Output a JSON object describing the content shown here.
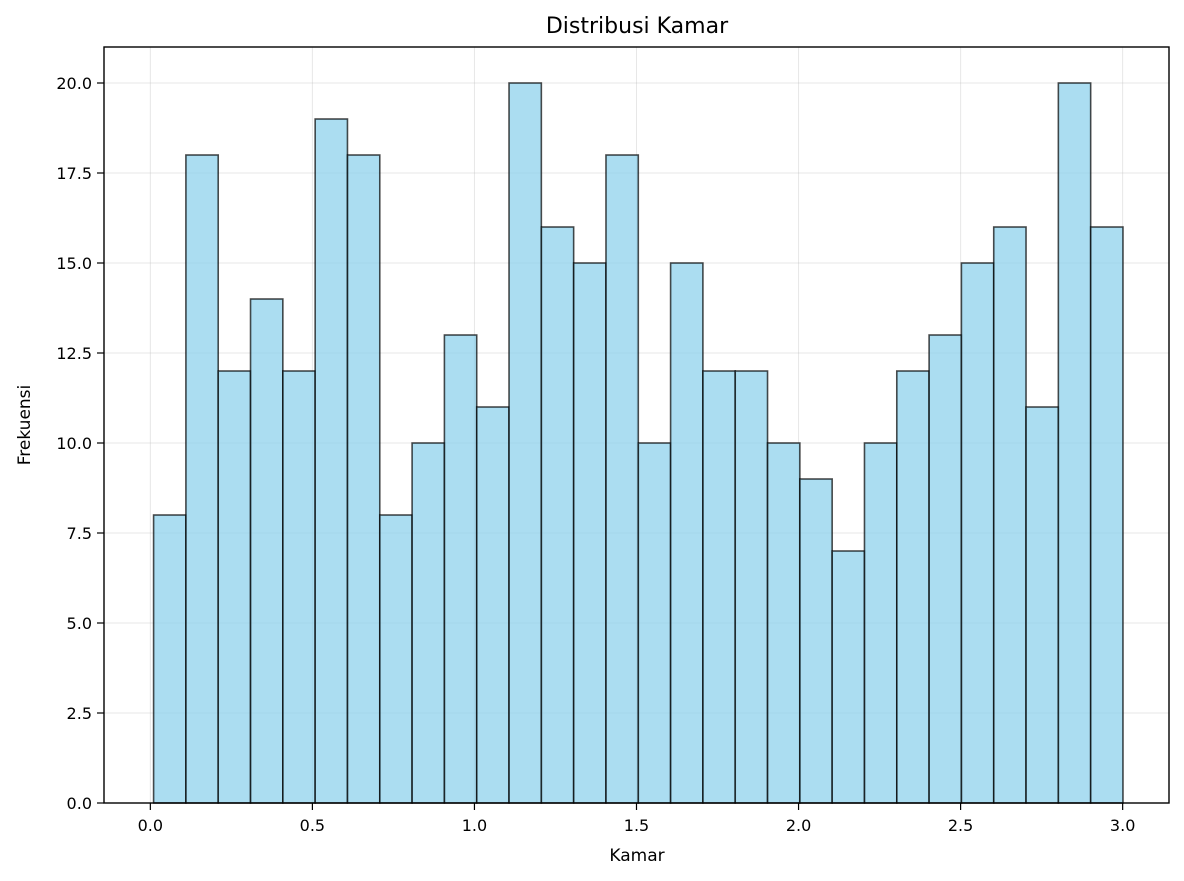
{
  "chart_data": {
    "type": "bar",
    "title": "Distribusi Kamar",
    "xlabel": "Kamar",
    "ylabel": "Frekuensi",
    "xlim": [
      -0.143,
      3.143
    ],
    "ylim": [
      0,
      21
    ],
    "x_ticks": [
      0.0,
      0.5,
      1.0,
      1.5,
      2.0,
      2.5,
      3.0
    ],
    "x_tick_labels": [
      "0.0",
      "0.5",
      "1.0",
      "1.5",
      "2.0",
      "2.5",
      "3.0"
    ],
    "y_ticks": [
      0,
      2.5,
      5,
      7.5,
      10,
      12.5,
      15,
      17.5,
      20
    ],
    "y_tick_labels": [
      "0.0",
      "2.5",
      "5.0",
      "7.5",
      "10.0",
      "12.5",
      "15.0",
      "17.5",
      "20.0"
    ],
    "grid": true,
    "bin_start": 0.01,
    "bin_width": 0.0997,
    "values": [
      8,
      18,
      12,
      14,
      12,
      19,
      18,
      8,
      10,
      13,
      11,
      20,
      16,
      15,
      18,
      10,
      15,
      12,
      12,
      10,
      9,
      7,
      10,
      12,
      13,
      15,
      16,
      11,
      20,
      16
    ],
    "bar_color": "#87ceeb",
    "edge_color": "#000000"
  }
}
